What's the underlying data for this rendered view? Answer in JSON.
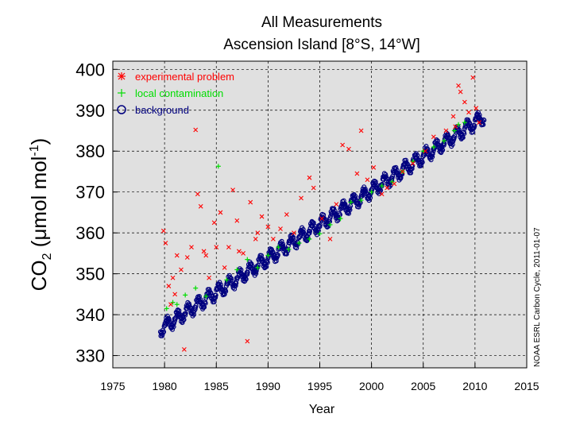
{
  "chart_data": {
    "type": "scatter",
    "title": "All Measurements",
    "subtitle": "Ascension Island [8°S, 14°W]",
    "xlabel": "Year",
    "ylabel_main": "CO",
    "ylabel_sub": "2",
    "ylabel_unit": " (μmol mol",
    "ylabel_sup": "-1",
    "ylabel_close": ")",
    "side_note": "NOAA ESRL Carbon Cycle, 2011-01-07",
    "xlim": [
      1975,
      2015
    ],
    "ylim": [
      327,
      402
    ],
    "x_ticks": [
      1975,
      1980,
      1985,
      1990,
      1995,
      2000,
      2005,
      2010,
      2015
    ],
    "y_ticks": [
      330,
      340,
      350,
      360,
      370,
      380,
      390,
      400
    ],
    "grid": true,
    "background_color": "#e0e0e0",
    "legend_position": "top-left",
    "legend": [
      {
        "label": "experimental problem",
        "color": "#ff0000",
        "marker": "asterisk"
      },
      {
        "label": "local contamination",
        "color": "#00dd00",
        "marker": "plus"
      },
      {
        "label": "background",
        "color": "#00007f",
        "marker": "circle"
      }
    ],
    "series": [
      {
        "name": "background",
        "color": "#00007f",
        "trend": {
          "x": [
            1979.6,
            2010.9
          ],
          "y": [
            336.5,
            388.5
          ]
        },
        "seasonal_amplitude": 1.5,
        "x_range": [
          1979.6,
          2010.9
        ]
      },
      {
        "name": "local contamination",
        "color": "#00dd00",
        "points": [
          [
            1980.2,
            341.5
          ],
          [
            1980.8,
            343.0
          ],
          [
            1981.2,
            342.5
          ],
          [
            1982.0,
            344.8
          ],
          [
            1983.0,
            346.5
          ],
          [
            1984.0,
            344.5
          ],
          [
            1985.2,
            376.3
          ],
          [
            1986.0,
            348.5
          ],
          [
            1987.0,
            351.0
          ],
          [
            1988.0,
            353.5
          ],
          [
            1989.0,
            351.5
          ],
          [
            1990.0,
            354.5
          ],
          [
            1991.0,
            356.5
          ],
          [
            1992.0,
            356.0
          ],
          [
            1993.0,
            357.5
          ],
          [
            1994.0,
            358.5
          ],
          [
            1995.0,
            359.8
          ],
          [
            1996.0,
            362.0
          ],
          [
            1997.0,
            363.5
          ],
          [
            1998.0,
            367.5
          ],
          [
            1999.0,
            368.0
          ],
          [
            2000.0,
            370.0
          ],
          [
            2001.0,
            371.5
          ],
          [
            2002.0,
            372.5
          ],
          [
            2003.0,
            375.0
          ],
          [
            2004.0,
            377.5
          ],
          [
            2005.0,
            380.0
          ],
          [
            2006.0,
            381.0
          ],
          [
            2007.0,
            382.5
          ],
          [
            2008.0,
            385.0
          ],
          [
            2008.4,
            386.5
          ],
          [
            2009.0,
            387.0
          ]
        ]
      },
      {
        "name": "experimental problem",
        "color": "#ff0000",
        "points": [
          [
            1979.9,
            360.5
          ],
          [
            1980.1,
            357.5
          ],
          [
            1980.4,
            347.0
          ],
          [
            1980.6,
            342.5
          ],
          [
            1980.8,
            349.0
          ],
          [
            1981.0,
            345.0
          ],
          [
            1981.2,
            354.5
          ],
          [
            1981.6,
            351.0
          ],
          [
            1981.9,
            331.5
          ],
          [
            1982.2,
            354.0
          ],
          [
            1982.6,
            356.5
          ],
          [
            1983.0,
            385.2
          ],
          [
            1983.2,
            369.5
          ],
          [
            1983.5,
            366.5
          ],
          [
            1983.8,
            355.5
          ],
          [
            1984.0,
            354.5
          ],
          [
            1984.3,
            349.0
          ],
          [
            1984.8,
            362.5
          ],
          [
            1985.0,
            356.5
          ],
          [
            1985.4,
            365.0
          ],
          [
            1985.8,
            351.5
          ],
          [
            1986.2,
            356.5
          ],
          [
            1986.6,
            370.5
          ],
          [
            1987.0,
            363.0
          ],
          [
            1987.2,
            355.5
          ],
          [
            1987.6,
            355.0
          ],
          [
            1988.0,
            333.5
          ],
          [
            1988.3,
            367.5
          ],
          [
            1988.8,
            358.5
          ],
          [
            1989.0,
            360.0
          ],
          [
            1989.4,
            364.0
          ],
          [
            1990.0,
            361.5
          ],
          [
            1990.5,
            358.5
          ],
          [
            1991.2,
            361.0
          ],
          [
            1991.8,
            364.5
          ],
          [
            1992.5,
            360.0
          ],
          [
            1993.2,
            368.5
          ],
          [
            1994.0,
            373.5
          ],
          [
            1994.4,
            371.0
          ],
          [
            1995.2,
            363.5
          ],
          [
            1996.0,
            358.5
          ],
          [
            1996.6,
            367.0
          ],
          [
            1997.2,
            381.5
          ],
          [
            1997.8,
            380.5
          ],
          [
            1998.6,
            374.5
          ],
          [
            1999.0,
            385.0
          ],
          [
            1999.6,
            373.0
          ],
          [
            2000.2,
            376.0
          ],
          [
            2001.0,
            369.5
          ],
          [
            2001.5,
            371.0
          ],
          [
            2002.2,
            372.0
          ],
          [
            2003.0,
            375.0
          ],
          [
            2004.0,
            377.0
          ],
          [
            2005.2,
            380.0
          ],
          [
            2006.0,
            383.5
          ],
          [
            2007.2,
            385.0
          ],
          [
            2007.9,
            388.5
          ],
          [
            2008.1,
            386.0
          ],
          [
            2008.4,
            396.0
          ],
          [
            2008.6,
            394.5
          ],
          [
            2009.0,
            392.0
          ],
          [
            2009.4,
            389.5
          ],
          [
            2009.8,
            398.0
          ],
          [
            2010.1,
            390.5
          ],
          [
            2010.4,
            387.0
          ]
        ]
      }
    ]
  }
}
